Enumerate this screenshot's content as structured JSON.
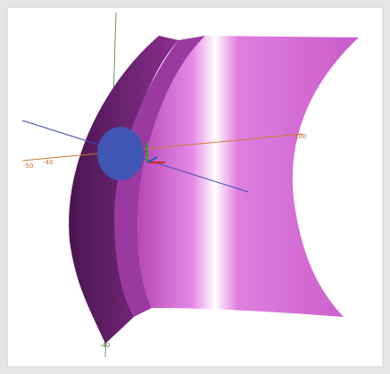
{
  "axis_labels": {
    "x_left_outer": "-50",
    "x_left_inner": "-40",
    "x_right": "100",
    "z_bottom": "-40"
  }
}
